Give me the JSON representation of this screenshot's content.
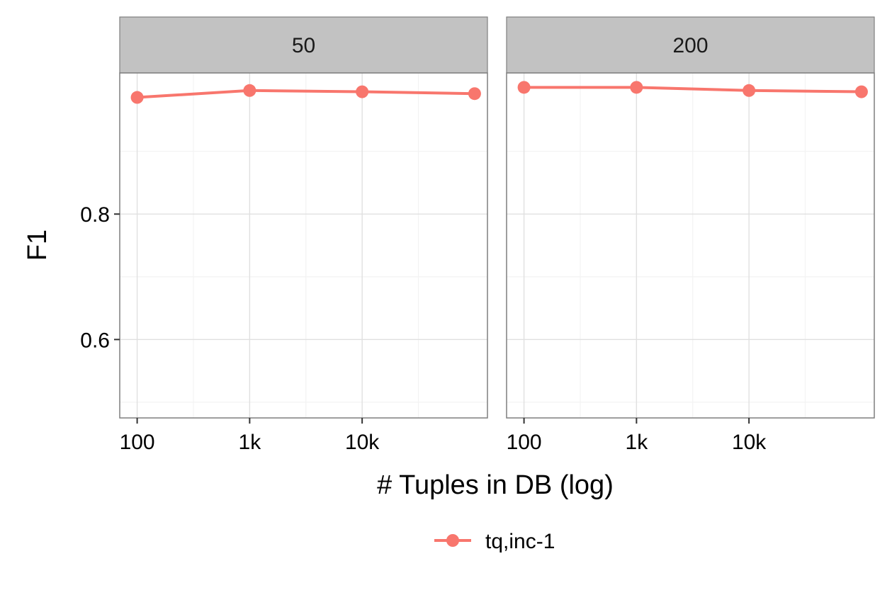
{
  "chart_data": {
    "type": "line",
    "facets": [
      {
        "label": "50",
        "series": [
          {
            "name": "tq,inc-1",
            "x": [
              100,
              1000,
              10000,
              100000
            ],
            "y": [
              0.986,
              0.997,
              0.995,
              0.992
            ]
          }
        ]
      },
      {
        "label": "200",
        "series": [
          {
            "name": "tq,inc-1",
            "x": [
              100,
              1000,
              10000,
              100000
            ],
            "y": [
              1.002,
              1.002,
              0.997,
              0.995
            ]
          }
        ]
      }
    ],
    "xlabel": "# Tuples in DB (log)",
    "ylabel": "F1",
    "x_scale": "log10",
    "xlim": [
      70,
      130000
    ],
    "ylim": [
      0.475,
      1.025
    ],
    "x_ticks": [
      100,
      1000,
      10000
    ],
    "x_tick_labels": [
      "100",
      "1k",
      "10k"
    ],
    "y_ticks": [
      0.6,
      0.8
    ],
    "y_tick_labels": [
      "0.6",
      "0.8"
    ],
    "grid": true,
    "legend": {
      "position": "bottom",
      "entries": [
        "tq,inc-1"
      ]
    },
    "colors": {
      "tq,inc-1": "#F8766D"
    }
  }
}
